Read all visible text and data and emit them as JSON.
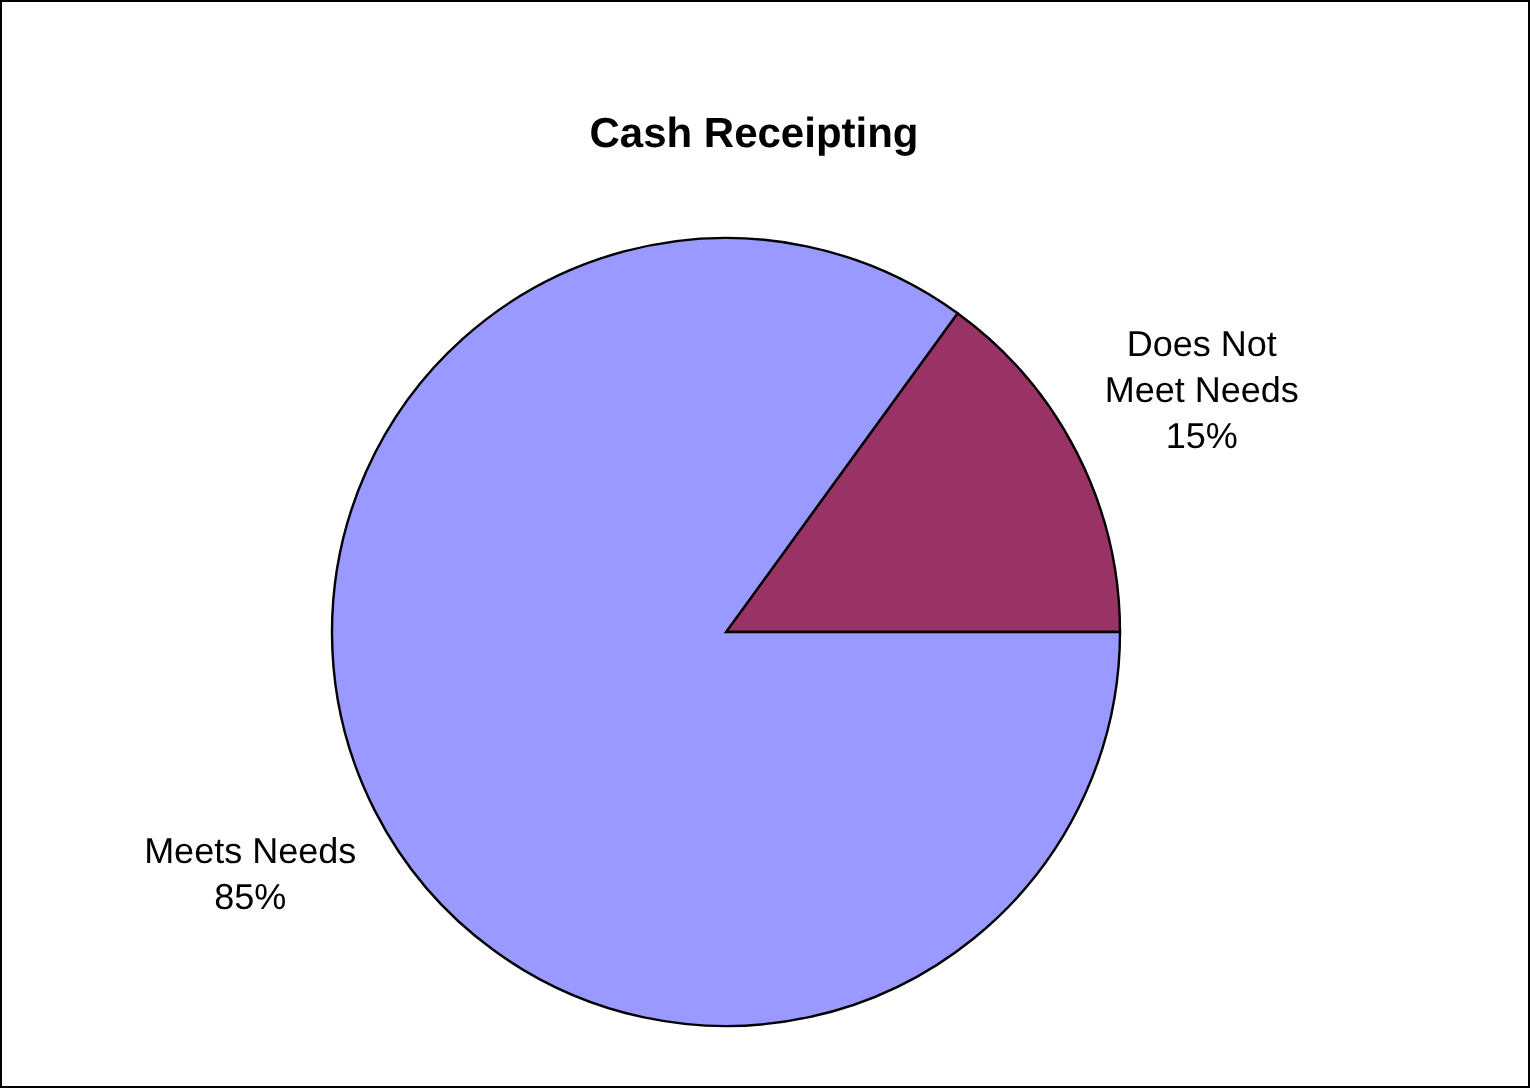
{
  "chart_data": {
    "type": "pie",
    "title": "Cash Receipting",
    "categories": [
      "Does Not Meet Needs",
      "Meets Needs"
    ],
    "values": [
      15,
      85
    ],
    "value_labels": [
      "15%",
      "85%"
    ],
    "colors": [
      "#993366",
      "#9999ff"
    ]
  }
}
